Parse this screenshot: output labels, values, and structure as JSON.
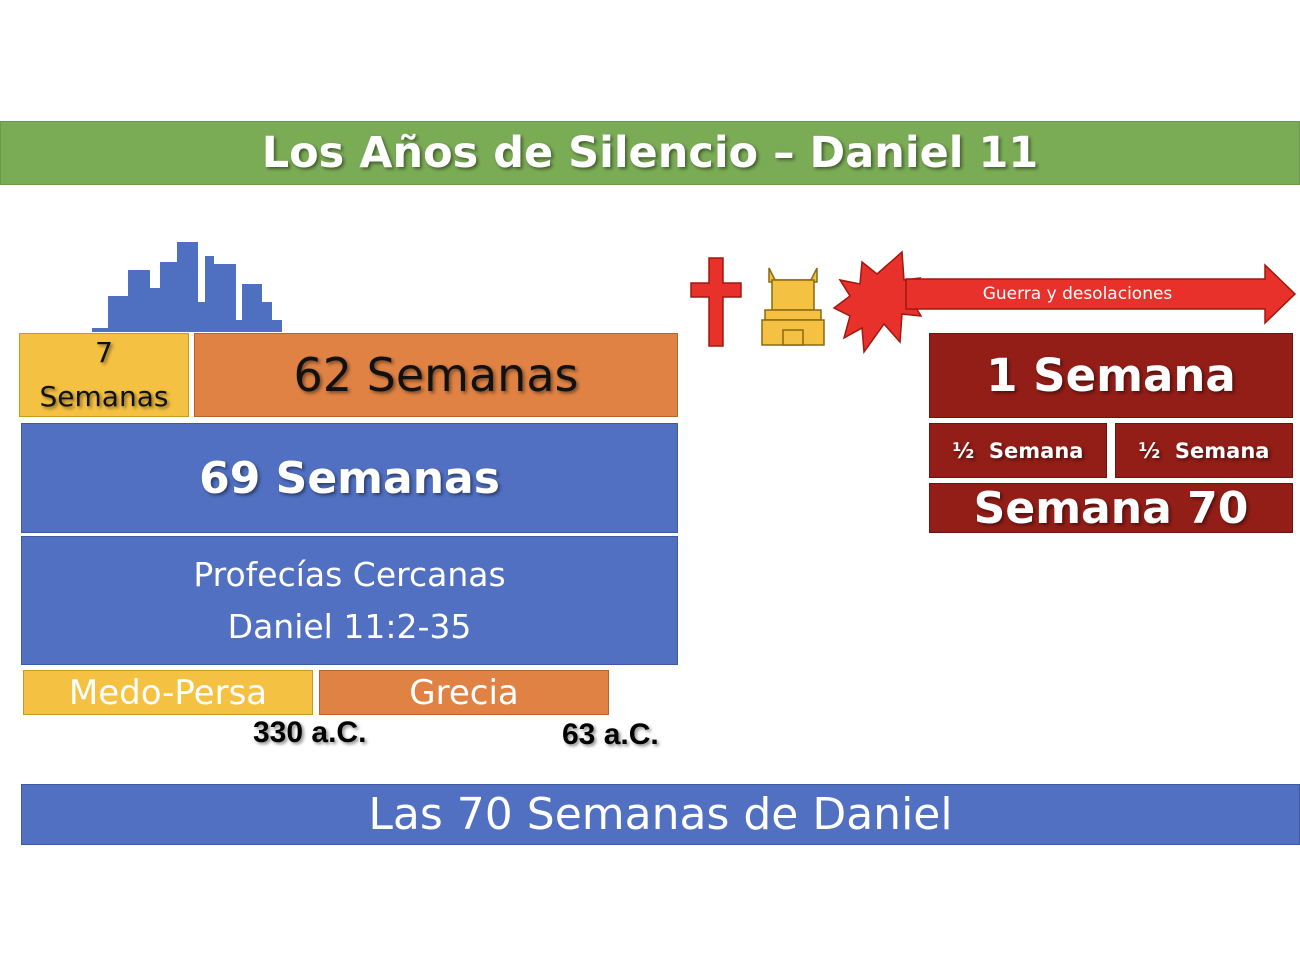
{
  "title": "Los Años de Silencio – Daniel 11",
  "weeks": {
    "seven_number": "7",
    "seven_label": "Semanas",
    "sixty_two": "62 Semanas",
    "sixty_nine": "69 Semanas"
  },
  "prophecies": {
    "line1": "Profecías Cercanas",
    "line2": "Daniel 11:2-35"
  },
  "empires": {
    "medo_persa": "Medo-Persa",
    "grecia": "Grecia"
  },
  "dates": {
    "d330": "330 a.C.",
    "d63": "63 a.C."
  },
  "footer": "Las 70 Semanas de Daniel",
  "seventieth": {
    "one_week": "1 Semana",
    "half_a": "½  Semana",
    "half_b": "½  Semana",
    "week_70": "Semana 70",
    "arrow_label": "Guerra y desolaciones"
  },
  "colors": {
    "green": "#7aab55",
    "yellow": "#f4c142",
    "orange": "#df8244",
    "blue": "#5170c2",
    "dark_red": "#931d17",
    "red": "#e8312a"
  },
  "icons": [
    "city-skyline-icon",
    "cross-icon",
    "temple-icon",
    "explosion-icon",
    "arrow-right-icon"
  ]
}
